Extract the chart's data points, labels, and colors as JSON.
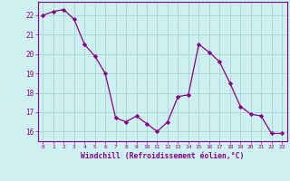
{
  "x": [
    0,
    1,
    2,
    3,
    4,
    5,
    6,
    7,
    8,
    9,
    10,
    11,
    12,
    13,
    14,
    15,
    16,
    17,
    18,
    19,
    20,
    21,
    22,
    23
  ],
  "y": [
    22.0,
    22.2,
    22.3,
    21.8,
    20.5,
    19.9,
    19.0,
    16.7,
    16.5,
    16.8,
    16.4,
    16.0,
    16.5,
    17.8,
    17.9,
    20.5,
    20.1,
    19.6,
    18.5,
    17.3,
    16.9,
    16.8,
    15.9,
    15.9
  ],
  "line_color": "#880088",
  "marker": "D",
  "marker_size": 2.2,
  "bg_color": "#cff0f0",
  "grid_color": "#a8d8d8",
  "xlabel": "Windchill (Refroidissement éolien,°C)",
  "xlim": [
    -0.5,
    23.5
  ],
  "ylim": [
    15.5,
    22.7
  ],
  "yticks": [
    16,
    17,
    18,
    19,
    20,
    21,
    22
  ],
  "xticks": [
    0,
    1,
    2,
    3,
    4,
    5,
    6,
    7,
    8,
    9,
    10,
    11,
    12,
    13,
    14,
    15,
    16,
    17,
    18,
    19,
    20,
    21,
    22,
    23
  ],
  "tick_color": "#880088",
  "label_color": "#880088",
  "axis_color": "#880088"
}
